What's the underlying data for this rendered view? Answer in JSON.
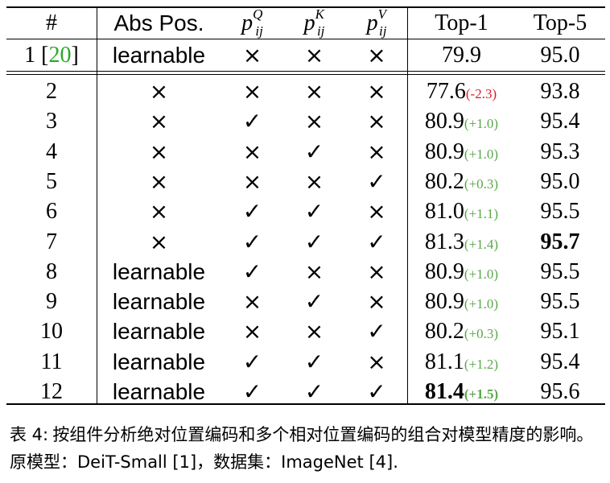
{
  "table": {
    "headers": {
      "index": "#",
      "abs_pos": "Abs Pos.",
      "pq": {
        "base": "p",
        "sup": "Q",
        "sub": "ij"
      },
      "pk": {
        "base": "p",
        "sup": "K",
        "sub": "ij"
      },
      "pv": {
        "base": "p",
        "sup": "V",
        "sub": "ij"
      },
      "top1": "Top-1",
      "top5": "Top-5"
    },
    "baseline": {
      "index": "1",
      "ref_open": "[",
      "ref": "20",
      "ref_close": "]",
      "abs_pos": "learnable",
      "pq": "×",
      "pk": "×",
      "pv": "×",
      "top1": "79.9",
      "top5": "95.0"
    },
    "rows": [
      {
        "index": "2",
        "abs_pos": "×",
        "pq": "×",
        "pk": "×",
        "pv": "×",
        "top1": "77.6",
        "delta": "(-2.3)",
        "delta_sign": "neg",
        "top5": "93.8"
      },
      {
        "index": "3",
        "abs_pos": "×",
        "pq": "✓",
        "pk": "×",
        "pv": "×",
        "top1": "80.9",
        "delta": "(+1.0)",
        "delta_sign": "pos",
        "top5": "95.4"
      },
      {
        "index": "4",
        "abs_pos": "×",
        "pq": "×",
        "pk": "✓",
        "pv": "×",
        "top1": "80.9",
        "delta": "(+1.0)",
        "delta_sign": "pos",
        "top5": "95.3"
      },
      {
        "index": "5",
        "abs_pos": "×",
        "pq": "×",
        "pk": "×",
        "pv": "✓",
        "top1": "80.2",
        "delta": "(+0.3)",
        "delta_sign": "pos",
        "top5": "95.0"
      },
      {
        "index": "6",
        "abs_pos": "×",
        "pq": "✓",
        "pk": "✓",
        "pv": "×",
        "top1": "81.0",
        "delta": "(+1.1)",
        "delta_sign": "pos",
        "top5": "95.5"
      },
      {
        "index": "7",
        "abs_pos": "×",
        "pq": "✓",
        "pk": "✓",
        "pv": "✓",
        "top1": "81.3",
        "delta": "(+1.4)",
        "delta_sign": "pos",
        "top5": "95.7",
        "top5_bold": true
      },
      {
        "index": "8",
        "abs_pos": "learnable",
        "pq": "✓",
        "pk": "×",
        "pv": "×",
        "top1": "80.9",
        "delta": "(+1.0)",
        "delta_sign": "pos",
        "top5": "95.5"
      },
      {
        "index": "9",
        "abs_pos": "learnable",
        "pq": "×",
        "pk": "✓",
        "pv": "×",
        "top1": "80.9",
        "delta": "(+1.0)",
        "delta_sign": "pos",
        "top5": "95.5"
      },
      {
        "index": "10",
        "abs_pos": "learnable",
        "pq": "×",
        "pk": "×",
        "pv": "✓",
        "top1": "80.2",
        "delta": "(+0.3)",
        "delta_sign": "pos",
        "top5": "95.1"
      },
      {
        "index": "11",
        "abs_pos": "learnable",
        "pq": "✓",
        "pk": "✓",
        "pv": "×",
        "top1": "81.1",
        "delta": "(+1.2)",
        "delta_sign": "pos",
        "top5": "95.4"
      },
      {
        "index": "12",
        "abs_pos": "learnable",
        "pq": "✓",
        "pk": "✓",
        "pv": "✓",
        "top1": "81.4",
        "delta": "(+1.5)",
        "delta_sign": "pos",
        "top5": "95.6",
        "top1_bold": true
      }
    ]
  },
  "caption": {
    "label": "表 4:",
    "text": "按组件分析绝对位置编码和多个相对位置编码的组合对模型精度的影响。原模型：DeiT-Small [1]，数据集：ImageNet [4]."
  },
  "colors": {
    "positive_delta": "#5aa84a",
    "negative_delta": "#e0182c",
    "citation": "#2aa82a"
  }
}
